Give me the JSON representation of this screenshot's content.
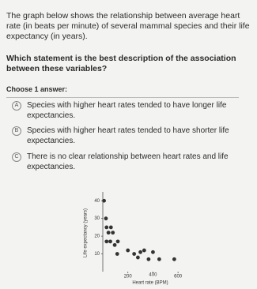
{
  "question": "The graph below shows the relationship between average heart rate (in beats per minute) of several mammal species and their life expectancy (in years).",
  "prompt": "Which statement is the best description of the association between these variables?",
  "choose_label": "Choose 1 answer:",
  "options": [
    {
      "letter": "A",
      "text": "Species with higher heart rates tended to have longer life expectancies."
    },
    {
      "letter": "B",
      "text": "Species with higher heart rates tended to have shorter life expectancies."
    },
    {
      "letter": "C",
      "text": "There is no clear relationship between heart rates and life expectancies."
    }
  ],
  "chart_data": {
    "type": "scatter",
    "x_label": "Heart rate (BPM)",
    "y_label": "Life expectancy (years)",
    "x": [
      10,
      25,
      30,
      65,
      45,
      80,
      60,
      120,
      30,
      95,
      115,
      200,
      250,
      300,
      330,
      280,
      365,
      400,
      450,
      570
    ],
    "values": [
      40,
      30,
      25,
      25,
      22,
      22,
      17,
      17,
      17,
      15,
      10,
      12,
      10,
      11,
      12,
      8,
      7,
      11,
      7,
      7
    ],
    "color": "#333333",
    "xlim": [
      0,
      700
    ],
    "xticks": [
      200,
      400,
      600
    ],
    "ylim": [
      0,
      45
    ],
    "yticks": [
      10,
      20,
      30,
      40
    ]
  }
}
